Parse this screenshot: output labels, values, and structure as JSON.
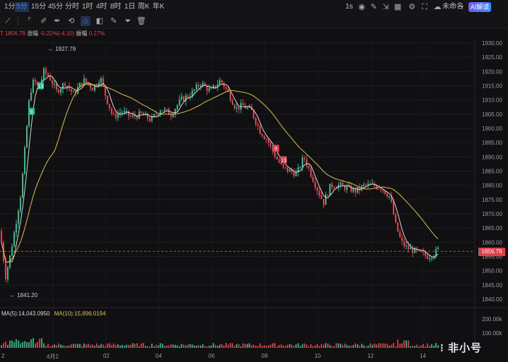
{
  "timeframes": [
    {
      "label": "1分",
      "active": false
    },
    {
      "label": "5分",
      "active": true
    },
    {
      "label": "15分",
      "active": false
    },
    {
      "label": "45分",
      "active": false
    },
    {
      "label": "分时",
      "active": false
    },
    {
      "label": "1时",
      "active": false
    },
    {
      "label": "4时",
      "active": false
    },
    {
      "label": "8时",
      "active": false
    },
    {
      "label": "1日",
      "active": false
    },
    {
      "label": "周K",
      "active": false
    },
    {
      "label": "年K",
      "active": false
    }
  ],
  "interval": "1s",
  "layout_name": "未命名",
  "ai_button": "AI解读",
  "stats": {
    "price": "1856.79",
    "change_label": "涨幅",
    "change": "-0.22%(-4.10)",
    "amplitude_label": "振幅",
    "amplitude": "0.27%"
  },
  "price_axis": [
    "1930.00",
    "1925.00",
    "1920.00",
    "1915.00",
    "1910.00",
    "1905.00",
    "1900.00",
    "1895.00",
    "1890.00",
    "1885.00",
    "1880.00",
    "1875.00",
    "1870.00",
    "1865.00",
    "1860.00",
    "1855.00",
    "1850.00",
    "1845.00",
    "1840.00"
  ],
  "current_price": "1856.79",
  "high": "1927.79",
  "low": "1841.20",
  "ma_legend": {
    "ma5": "MA(5):14,043.0950",
    "ma10": "MA(10):15,896.0194"
  },
  "volume_axis": [
    "200.00k",
    "100.00k"
  ],
  "x_axis": [
    "2",
    "4月2",
    "02",
    "04",
    "06",
    "08",
    "10",
    "12",
    "14"
  ],
  "markers": [
    "9",
    "13",
    "9",
    "13"
  ],
  "watermark": "非小号",
  "colors": {
    "up": "#2fbd8f",
    "down": "#e0404a",
    "ma_white": "#d8d8dc",
    "ma_yellow": "#d9c43a",
    "accent": "#3d8bff"
  }
}
